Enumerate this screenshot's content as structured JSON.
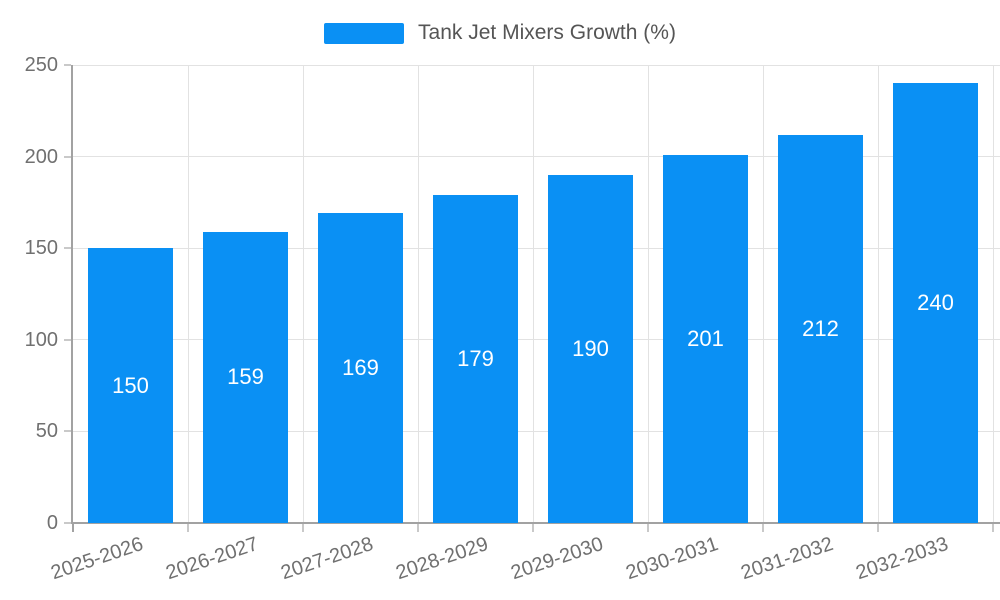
{
  "chart_data": {
    "type": "bar",
    "title": "Tank Jet Mixers Growth (%)",
    "series_name": "Tank Jet Mixers Growth (%)",
    "categories": [
      "2025-2026",
      "2026-2027",
      "2027-2028",
      "2028-2029",
      "2029-2030",
      "2030-2031",
      "2031-2032",
      "2032-2033"
    ],
    "values": [
      150,
      159,
      169,
      179,
      190,
      201,
      212,
      240
    ],
    "xlabel": "",
    "ylabel": "",
    "ylim": [
      0,
      250
    ],
    "yticks": [
      0,
      50,
      100,
      150,
      200,
      250
    ],
    "grid": true,
    "legend_position": "top-center",
    "bar_label_position": "inside-middle",
    "x_label_rotation_deg": -18.5,
    "colors": {
      "bar": "#0a90f4",
      "axis_line": "#a2a2a2",
      "grid_line": "#e2e2e2",
      "tick_line": "#c9c9c9",
      "axis_text": "#707070",
      "legend_text": "#555555",
      "bar_label_text": "#ffffff",
      "background": "#ffffff"
    }
  }
}
